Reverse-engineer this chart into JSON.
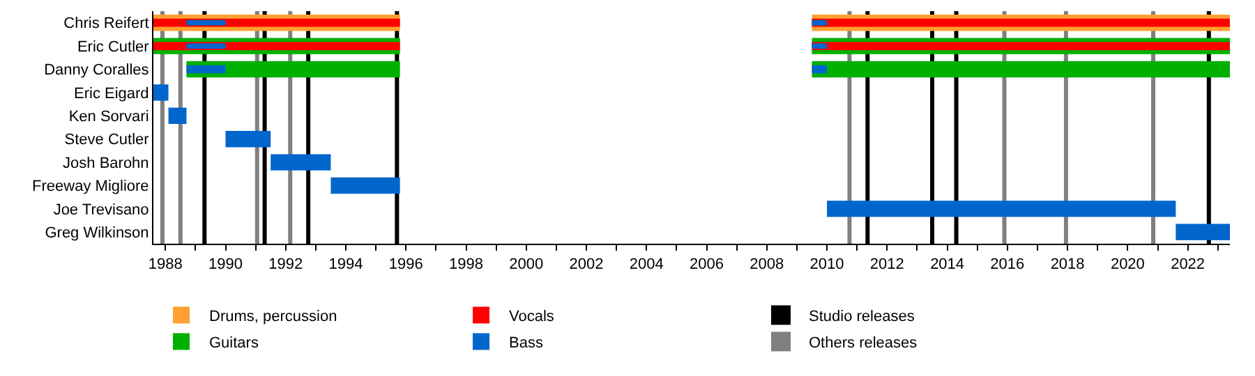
{
  "chart_data": {
    "type": "bar",
    "orientation": "horizontal",
    "categories": [
      "Chris Reifert",
      "Eric Cutler",
      "Danny Coralles",
      "Eric Eigard",
      "Ken Sorvari",
      "Steve Cutler",
      "Josh Barohn",
      "Freeway Migliore",
      "Joe Trevisano",
      "Greg Wilkinson"
    ],
    "series": [
      {
        "name": "Drums, percussion",
        "color": "#ffa030",
        "base": [
          1987.6,
          null,
          null,
          null,
          null,
          null,
          null,
          null,
          null,
          null
        ],
        "values": [
          8.2,
          null,
          null,
          null,
          null,
          null,
          null,
          null,
          null,
          null
        ]
      },
      {
        "color": "#ffa030",
        "base": [
          2009.5,
          null,
          null,
          null,
          null,
          null,
          null,
          null,
          null,
          null
        ],
        "values": [
          13.9,
          null,
          null,
          null,
          null,
          null,
          null,
          null,
          null,
          null
        ]
      },
      {
        "name": "Guitars",
        "color": "#00b000",
        "base": [
          null,
          1987.6,
          1988.7,
          null,
          null,
          null,
          null,
          null,
          null,
          null
        ],
        "values": [
          null,
          8.2,
          7.1,
          null,
          null,
          null,
          null,
          null,
          null,
          null
        ]
      },
      {
        "color": "#00b000",
        "base": [
          null,
          2009.5,
          2009.5,
          null,
          null,
          null,
          null,
          null,
          null,
          null
        ],
        "values": [
          null,
          13.9,
          13.9,
          null,
          null,
          null,
          null,
          null,
          null,
          null
        ]
      },
      {
        "name": "Vocals",
        "color": "#ff0000",
        "base": [
          1987.6,
          1987.6,
          null,
          null,
          null,
          null,
          null,
          null,
          null,
          null
        ],
        "values": [
          8.2,
          8.2,
          null,
          null,
          null,
          null,
          null,
          null,
          null,
          null
        ]
      },
      {
        "color": "#ff0000",
        "base": [
          2009.5,
          2009.5,
          null,
          null,
          null,
          null,
          null,
          null,
          null,
          null
        ],
        "values": [
          13.9,
          13.9,
          null,
          null,
          null,
          null,
          null,
          null,
          null,
          null
        ]
      },
      {
        "name": "Bass",
        "color": "#0066cc",
        "base": [
          null,
          null,
          null,
          1987.6,
          1988.1,
          1990.0,
          1991.5,
          1993.5,
          2010.0,
          2021.6
        ],
        "values": [
          null,
          null,
          null,
          0.5,
          0.6,
          1.5,
          2.0,
          2.3,
          11.6,
          1.8
        ]
      },
      {
        "color": "#0066cc",
        "base": [
          1988.7,
          1988.7,
          1988.7,
          null,
          null,
          null,
          null,
          null,
          null,
          null
        ],
        "values": [
          1.3,
          1.3,
          1.3,
          null,
          null,
          null,
          null,
          null,
          null,
          null
        ]
      },
      {
        "color": "#0066cc",
        "base": [
          2009.5,
          2009.5,
          2009.5,
          null,
          null,
          null,
          null,
          null,
          null,
          null
        ],
        "values": [
          0.5,
          0.5,
          0.5,
          null,
          null,
          null,
          null,
          null,
          null,
          null
        ]
      }
    ],
    "ref_lines": [
      {
        "axis": "x",
        "value": 1989.3,
        "label": "Studio releases",
        "color": "#000000"
      },
      {
        "axis": "x",
        "value": 1991.3,
        "color": "#000000"
      },
      {
        "axis": "x",
        "value": 1992.75,
        "color": "#000000"
      },
      {
        "axis": "x",
        "value": 1995.7,
        "color": "#000000"
      },
      {
        "axis": "x",
        "value": 2011.35,
        "color": "#000000"
      },
      {
        "axis": "x",
        "value": 2013.5,
        "color": "#000000"
      },
      {
        "axis": "x",
        "value": 2014.3,
        "color": "#000000"
      },
      {
        "axis": "x",
        "value": 2022.7,
        "color": "#000000"
      },
      {
        "axis": "x",
        "value": 1987.9,
        "label": "Others releases",
        "color": "#808080"
      },
      {
        "axis": "x",
        "value": 1988.5,
        "color": "#808080"
      },
      {
        "axis": "x",
        "value": 1991.05,
        "color": "#808080"
      },
      {
        "axis": "x",
        "value": 1992.15,
        "color": "#808080"
      },
      {
        "axis": "x",
        "value": 2010.75,
        "color": "#808080"
      },
      {
        "axis": "x",
        "value": 2015.9,
        "color": "#808080"
      },
      {
        "axis": "x",
        "value": 2017.95,
        "color": "#808080"
      },
      {
        "axis": "x",
        "value": 2020.85,
        "color": "#808080"
      }
    ],
    "xlim": [
      1987.6,
      2023.4
    ],
    "xticks": [
      1988,
      {
        "value": 1989,
        "label": null
      },
      1990,
      {
        "value": 1991,
        "label": null
      },
      1992,
      {
        "value": 1993,
        "label": null
      },
      1994,
      {
        "value": 1995,
        "label": null
      },
      1996,
      {
        "value": 1997,
        "label": null
      },
      1998,
      {
        "value": 1999,
        "label": null
      },
      2000,
      {
        "value": 2001,
        "label": null
      },
      2002,
      {
        "value": 2003,
        "label": null
      },
      2004,
      {
        "value": 2005,
        "label": null
      },
      2006,
      {
        "value": 2007,
        "label": null
      },
      2008,
      {
        "value": 2009,
        "label": null
      },
      2010,
      {
        "value": 2011,
        "label": null
      },
      2012,
      {
        "value": 2013,
        "label": null
      },
      2014,
      {
        "value": 2015,
        "label": null
      },
      2016,
      {
        "value": 2017,
        "label": null
      },
      2018,
      {
        "value": 2019,
        "label": null
      },
      2020,
      {
        "value": 2021,
        "label": null
      },
      2022,
      {
        "value": 2023,
        "label": null
      }
    ],
    "grid": false,
    "legend": "bottom"
  }
}
